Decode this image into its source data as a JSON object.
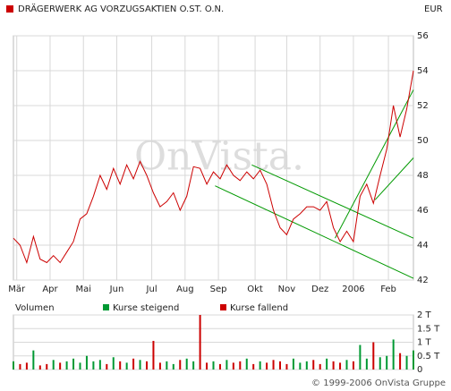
{
  "chart_data": [
    {
      "type": "line",
      "title": "DRÄGERWERK AG VORZUGSAKTIEN O.ST. O.N.",
      "currency": "EUR",
      "watermark": "OnVista.",
      "xlim": [
        0,
        240
      ],
      "xticks": [
        {
          "value": 2,
          "label": "Mär"
        },
        {
          "value": 22,
          "label": "Apr"
        },
        {
          "value": 42,
          "label": "Mai"
        },
        {
          "value": 62,
          "label": "Jun"
        },
        {
          "value": 83,
          "label": "Jul"
        },
        {
          "value": 103,
          "label": "Aug"
        },
        {
          "value": 123,
          "label": "Sep"
        },
        {
          "value": 145,
          "label": "Okt"
        },
        {
          "value": 164,
          "label": "Nov"
        },
        {
          "value": 184,
          "label": "Dez"
        },
        {
          "value": 204,
          "label": "2006"
        },
        {
          "value": 225,
          "label": "Feb"
        }
      ],
      "ylim": [
        42,
        56
      ],
      "yticks": [
        42,
        44,
        46,
        48,
        50,
        52,
        54,
        56
      ],
      "grid": true,
      "x": [
        0,
        4,
        8,
        12,
        16,
        20,
        24,
        28,
        32,
        36,
        40,
        44,
        48,
        52,
        56,
        60,
        64,
        68,
        72,
        76,
        80,
        84,
        88,
        92,
        96,
        100,
        104,
        108,
        112,
        116,
        120,
        124,
        128,
        132,
        136,
        140,
        144,
        148,
        152,
        156,
        160,
        164,
        168,
        172,
        176,
        180,
        184,
        188,
        192,
        196,
        200,
        204,
        208,
        212,
        216,
        220,
        224,
        228,
        232,
        236,
        240
      ],
      "series": [
        {
          "color": "#cc0000",
          "values": [
            44.4,
            44.0,
            43.0,
            44.5,
            43.2,
            43.0,
            43.4,
            43.0,
            43.6,
            44.2,
            45.5,
            45.8,
            46.8,
            48.0,
            47.2,
            48.4,
            47.5,
            48.6,
            47.8,
            48.8,
            48.0,
            47.0,
            46.2,
            46.5,
            47.0,
            46.0,
            46.8,
            48.5,
            48.4,
            47.5,
            48.2,
            47.8,
            48.6,
            48.0,
            47.7,
            48.2,
            47.8,
            48.3,
            47.5,
            46.0,
            45.0,
            44.6,
            45.5,
            45.8,
            46.2,
            46.2,
            46.0,
            46.5,
            45.0,
            44.2,
            44.8,
            44.2,
            46.8,
            47.5,
            46.4,
            48.0,
            49.5,
            52.0,
            50.2,
            51.8,
            54.0
          ]
        }
      ],
      "trendline_color": "#009900",
      "trendlines": [
        {
          "x": [
            143,
            240
          ],
          "y": [
            48.6,
            44.4
          ]
        },
        {
          "x": [
            121,
            240
          ],
          "y": [
            47.4,
            42.1
          ]
        },
        {
          "x": [
            193,
            240
          ],
          "y": [
            44.4,
            52.9
          ]
        },
        {
          "x": [
            217,
            240
          ],
          "y": [
            46.6,
            49.0
          ]
        }
      ]
    },
    {
      "type": "bar",
      "title": "Volumen",
      "xlim": [
        0,
        240
      ],
      "ylim": [
        0,
        2000
      ],
      "yticks": [
        0,
        {
          "value": 500,
          "label": "0.5 T"
        },
        {
          "value": 1000,
          "label": "1 T"
        },
        {
          "value": 1500,
          "label": "1.5 T"
        },
        {
          "value": 2000,
          "label": "2 T"
        }
      ],
      "x": [
        0,
        4,
        8,
        12,
        16,
        20,
        24,
        28,
        32,
        36,
        40,
        44,
        48,
        52,
        56,
        60,
        64,
        68,
        72,
        76,
        80,
        84,
        88,
        92,
        96,
        100,
        104,
        108,
        112,
        116,
        120,
        124,
        128,
        132,
        136,
        140,
        144,
        148,
        152,
        156,
        160,
        164,
        168,
        172,
        176,
        180,
        184,
        188,
        192,
        196,
        200,
        204,
        208,
        212,
        216,
        220,
        224,
        228,
        232,
        236,
        240
      ],
      "series": [
        {
          "name": "Kurse steigend",
          "color": "#009933",
          "values": [
            300,
            null,
            null,
            700,
            null,
            null,
            350,
            null,
            300,
            400,
            250,
            500,
            300,
            350,
            null,
            450,
            null,
            250,
            null,
            350,
            null,
            null,
            null,
            300,
            200,
            null,
            400,
            300,
            null,
            null,
            300,
            null,
            350,
            null,
            null,
            400,
            null,
            300,
            null,
            null,
            null,
            null,
            400,
            250,
            300,
            null,
            null,
            400,
            null,
            null,
            350,
            null,
            900,
            400,
            null,
            450,
            500,
            1100,
            null,
            500,
            700
          ]
        },
        {
          "name": "Kurse fallend",
          "color": "#cc0000",
          "values": [
            null,
            200,
            250,
            null,
            150,
            200,
            null,
            250,
            null,
            null,
            null,
            null,
            null,
            null,
            200,
            null,
            300,
            null,
            400,
            null,
            300,
            1050,
            250,
            null,
            null,
            350,
            null,
            null,
            2000,
            250,
            null,
            200,
            null,
            250,
            300,
            null,
            200,
            null,
            250,
            350,
            300,
            200,
            null,
            null,
            null,
            350,
            200,
            null,
            300,
            250,
            null,
            300,
            null,
            null,
            1000,
            null,
            null,
            null,
            600,
            null,
            null
          ]
        }
      ],
      "footer": "© 1999-2006 OnVista Gruppe"
    }
  ]
}
